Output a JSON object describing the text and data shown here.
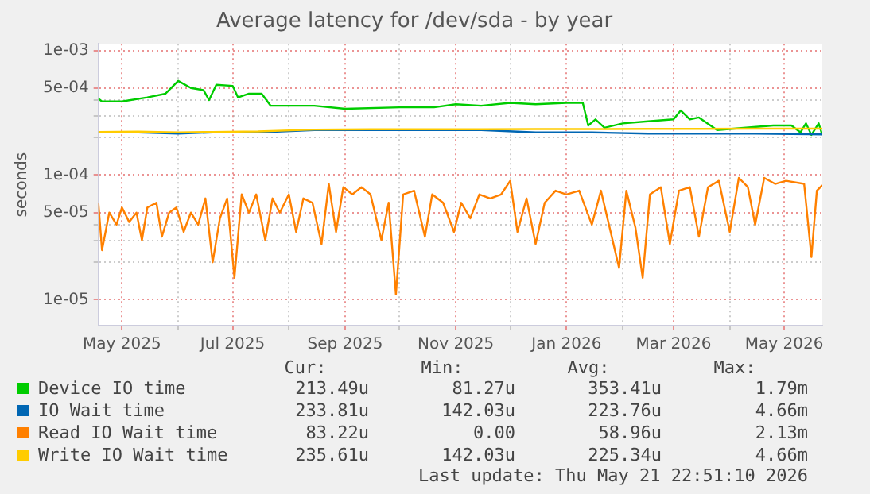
{
  "chart_data": {
    "type": "line",
    "title": "Average latency for /dev/sda - by year",
    "ylabel": "seconds",
    "log": "y",
    "grid": true,
    "legend": "bottom",
    "marker": "none",
    "line_style": "solid",
    "xlim": [
      "2025-04-18",
      "2026-05-22"
    ],
    "xticks": [
      {
        "value": "2025-05-01",
        "label": "May 2025"
      },
      {
        "value": "2025-06-01",
        "label": null
      },
      {
        "value": "2025-07-01",
        "label": "Jul 2025"
      },
      {
        "value": "2025-08-01",
        "label": null
      },
      {
        "value": "2025-09-01",
        "label": "Sep 2025"
      },
      {
        "value": "2025-10-01",
        "label": null
      },
      {
        "value": "2025-11-01",
        "label": "Nov 2025"
      },
      {
        "value": "2025-12-01",
        "label": null
      },
      {
        "value": "2026-01-01",
        "label": "Jan 2026"
      },
      {
        "value": "2026-02-01",
        "label": null
      },
      {
        "value": "2026-03-01",
        "label": "Mar 2026"
      },
      {
        "value": "2026-04-01",
        "label": null
      },
      {
        "value": "2026-05-01",
        "label": "May 2026"
      }
    ],
    "ylim": [
      6.2e-06,
      0.00113
    ],
    "yticks": [
      {
        "value": 1e-05,
        "label": "1e-05"
      },
      {
        "value": 2e-05,
        "label": null
      },
      {
        "value": 3e-05,
        "label": null
      },
      {
        "value": 4e-05,
        "label": null
      },
      {
        "value": 5e-05,
        "label": "5e-05"
      },
      {
        "value": 0.0001,
        "label": "1e-04"
      },
      {
        "value": 0.0002,
        "label": null
      },
      {
        "value": 0.0003,
        "label": null
      },
      {
        "value": 0.0004,
        "label": null
      },
      {
        "value": 0.0005,
        "label": "5e-04"
      },
      {
        "value": 0.001,
        "label": "1e-03"
      }
    ],
    "series": [
      {
        "name": "Device IO time",
        "color": "#00cc00",
        "x": [
          "2025-04-18",
          "2025-04-20",
          "2025-05-01",
          "2025-05-15",
          "2025-05-25",
          "2025-06-01",
          "2025-06-08",
          "2025-06-15",
          "2025-06-18",
          "2025-06-22",
          "2025-07-01",
          "2025-07-04",
          "2025-07-10",
          "2025-07-17",
          "2025-07-22",
          "2025-08-15",
          "2025-09-01",
          "2025-10-01",
          "2025-10-20",
          "2025-11-01",
          "2025-11-15",
          "2025-12-01",
          "2025-12-15",
          "2026-01-01",
          "2026-01-10",
          "2026-01-13",
          "2026-01-17",
          "2026-01-22",
          "2026-02-01",
          "2026-02-15",
          "2026-03-01",
          "2026-03-05",
          "2026-03-10",
          "2026-03-15",
          "2026-03-25",
          "2026-04-10",
          "2026-04-25",
          "2026-05-05",
          "2026-05-10",
          "2026-05-13",
          "2026-05-16",
          "2026-05-20",
          "2026-05-22"
        ],
        "values": [
          0.00041,
          0.00039,
          0.00039,
          0.00042,
          0.00045,
          0.00057,
          0.0005,
          0.00048,
          0.0004,
          0.00053,
          0.00052,
          0.00042,
          0.00045,
          0.00045,
          0.00036,
          0.00036,
          0.00034,
          0.00035,
          0.00035,
          0.00037,
          0.00036,
          0.00038,
          0.00037,
          0.00038,
          0.00038,
          0.00025,
          0.00028,
          0.00024,
          0.00026,
          0.00027,
          0.00028,
          0.00033,
          0.00028,
          0.00029,
          0.00023,
          0.00024,
          0.00025,
          0.00025,
          0.00022,
          0.00026,
          0.00021,
          0.00026,
          0.00021
        ]
      },
      {
        "name": "IO Wait time",
        "color": "#0066b3",
        "x": [
          "2025-04-18",
          "2025-05-10",
          "2025-06-01",
          "2025-06-20",
          "2025-07-15",
          "2025-08-15",
          "2025-09-15",
          "2025-10-15",
          "2025-11-15",
          "2025-12-15",
          "2026-01-15",
          "2026-02-15",
          "2026-03-15",
          "2026-04-15",
          "2026-05-22"
        ],
        "values": [
          0.00022,
          0.00022,
          0.000215,
          0.00022,
          0.00022,
          0.00023,
          0.00023,
          0.00023,
          0.00023,
          0.00022,
          0.00022,
          0.000215,
          0.000215,
          0.000215,
          0.000212
        ]
      },
      {
        "name": "Read IO Wait time",
        "color": "#ff8000",
        "x": [
          "2025-04-18",
          "2025-04-20",
          "2025-04-24",
          "2025-04-28",
          "2025-05-01",
          "2025-05-05",
          "2025-05-09",
          "2025-05-12",
          "2025-05-15",
          "2025-05-20",
          "2025-05-23",
          "2025-05-27",
          "2025-05-31",
          "2025-06-04",
          "2025-06-08",
          "2025-06-12",
          "2025-06-16",
          "2025-06-20",
          "2025-06-24",
          "2025-06-28",
          "2025-07-02",
          "2025-07-06",
          "2025-07-10",
          "2025-07-14",
          "2025-07-19",
          "2025-07-23",
          "2025-07-27",
          "2025-08-01",
          "2025-08-05",
          "2025-08-09",
          "2025-08-14",
          "2025-08-19",
          "2025-08-23",
          "2025-08-27",
          "2025-08-31",
          "2025-09-05",
          "2025-09-10",
          "2025-09-15",
          "2025-09-21",
          "2025-09-25",
          "2025-09-29",
          "2025-10-03",
          "2025-10-09",
          "2025-10-15",
          "2025-10-19",
          "2025-10-25",
          "2025-10-31",
          "2025-11-04",
          "2025-11-09",
          "2025-11-14",
          "2025-11-20",
          "2025-11-26",
          "2025-12-01",
          "2025-12-05",
          "2025-12-10",
          "2025-12-15",
          "2025-12-20",
          "2025-12-26",
          "2026-01-01",
          "2026-01-08",
          "2026-01-15",
          "2026-01-20",
          "2026-01-30",
          "2026-02-03",
          "2026-02-08",
          "2026-02-12",
          "2026-02-16",
          "2026-02-22",
          "2026-02-27",
          "2026-03-04",
          "2026-03-10",
          "2026-03-15",
          "2026-03-20",
          "2026-03-26",
          "2026-04-01",
          "2026-04-06",
          "2026-04-11",
          "2026-04-15",
          "2026-04-20",
          "2026-04-26",
          "2026-05-02",
          "2026-05-12",
          "2026-05-16",
          "2026-05-19",
          "2026-05-22"
        ],
        "values": [
          6e-05,
          2.5e-05,
          5e-05,
          4e-05,
          5.5e-05,
          4.2e-05,
          5e-05,
          3e-05,
          5.5e-05,
          6e-05,
          3.2e-05,
          5e-05,
          5.5e-05,
          3.5e-05,
          5e-05,
          4e-05,
          6.5e-05,
          2e-05,
          4.5e-05,
          6.5e-05,
          1.5e-05,
          7e-05,
          5e-05,
          7e-05,
          3e-05,
          6.5e-05,
          5e-05,
          7e-05,
          3.5e-05,
          6.5e-05,
          6e-05,
          2.8e-05,
          8.5e-05,
          3.5e-05,
          8e-05,
          7e-05,
          8e-05,
          7e-05,
          3e-05,
          6e-05,
          1.1e-05,
          7e-05,
          7.5e-05,
          3.2e-05,
          7e-05,
          6e-05,
          3.5e-05,
          6e-05,
          4.5e-05,
          7e-05,
          6.5e-05,
          7e-05,
          9e-05,
          3.5e-05,
          6.5e-05,
          2.8e-05,
          6e-05,
          7.5e-05,
          7e-05,
          7.5e-05,
          4e-05,
          7.5e-05,
          1.8e-05,
          7.5e-05,
          3.8e-05,
          1.5e-05,
          7e-05,
          8e-05,
          2.8e-05,
          7.5e-05,
          8e-05,
          3.2e-05,
          8e-05,
          9e-05,
          3.5e-05,
          9.5e-05,
          8e-05,
          4e-05,
          9.5e-05,
          8.5e-05,
          9e-05,
          8.5e-05,
          2.2e-05,
          7.5e-05,
          8.3e-05
        ]
      },
      {
        "name": "Write IO Wait time",
        "color": "#ffcc00",
        "x": [
          "2025-04-18",
          "2025-05-10",
          "2025-06-01",
          "2025-06-20",
          "2025-07-15",
          "2025-08-15",
          "2025-09-15",
          "2025-10-15",
          "2025-11-15",
          "2025-12-15",
          "2026-01-15",
          "2026-02-15",
          "2026-03-15",
          "2026-04-15",
          "2026-05-22"
        ],
        "values": [
          0.000222,
          0.000223,
          0.00022,
          0.000222,
          0.000224,
          0.000232,
          0.000233,
          0.000233,
          0.000233,
          0.000234,
          0.000234,
          0.000235,
          0.000235,
          0.000236,
          0.000236
        ]
      }
    ],
    "annotations": [
      "Cur:",
      "Min:",
      "Avg:",
      "Max:",
      "213.49u",
      "81.27u",
      "353.41u",
      "1.79m",
      "233.81u",
      "142.03u",
      "223.76u",
      "4.66m",
      "83.22u",
      "0.00",
      "58.96u",
      "2.13m",
      "235.61u",
      "142.03u",
      "225.34u",
      "4.66m",
      "Last update: Thu May 21 22:51:10 2026"
    ]
  }
}
